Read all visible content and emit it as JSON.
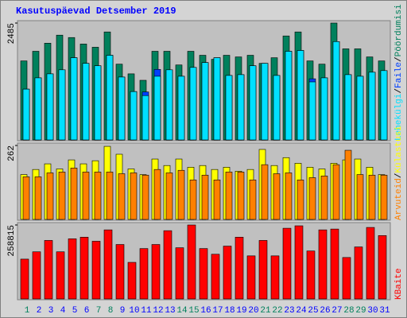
{
  "chart_data": [
    {
      "type": "bar",
      "title": "Kasutuspäevad Detsember 2019",
      "ylim": [
        0,
        2485
      ],
      "yticks": [
        2485
      ],
      "separator": "/",
      "series": [
        {
          "name": "Pöördumisi",
          "color": "#00805c",
          "values": [
            1680,
            1885,
            2057,
            2228,
            2177,
            2039,
            1971,
            2296,
            1611,
            1405,
            1268,
            1885,
            1885,
            1594,
            1885,
            1800,
            1714,
            1800,
            1765,
            1800,
            1628,
            1748,
            2211,
            2296,
            1680,
            1611,
            2485,
            1937,
            1937,
            1765,
            1680
          ]
        },
        {
          "name": "Faile",
          "color": "#0040ff",
          "values": [
            1080,
            1320,
            1405,
            1491,
            1748,
            1628,
            1577,
            1800,
            1337,
            1028,
            1020,
            1500,
            1491,
            1354,
            1542,
            1645,
            1748,
            1371,
            1388,
            1577,
            1628,
            1371,
            1885,
            1902,
            1300,
            1320,
            2091,
            1388,
            1354,
            1440,
            1474
          ]
        },
        {
          "name": "Lehekülgi",
          "color": "#00e0ff",
          "values": [
            1080,
            1320,
            1405,
            1491,
            1748,
            1628,
            1577,
            1800,
            1337,
            1028,
            943,
            1354,
            1491,
            1354,
            1542,
            1645,
            1748,
            1371,
            1388,
            1577,
            1628,
            1371,
            1885,
            1902,
            1234,
            1320,
            2091,
            1388,
            1354,
            1440,
            1474
          ]
        }
      ]
    },
    {
      "type": "bar",
      "ylim": [
        0,
        262
      ],
      "yticks": [
        262
      ],
      "separator": "/",
      "series": [
        {
          "name": "Külastusi",
          "color": "#ffff00",
          "values": [
            159,
            177,
            197,
            179,
            211,
            197,
            208,
            259,
            231,
            179,
            159,
            214,
            191,
            214,
            185,
            191,
            177,
            185,
            171,
            177,
            248,
            191,
            219,
            199,
            185,
            179,
            199,
            211,
            214,
            185,
            159
          ]
        },
        {
          "name": "Arvuteid",
          "color": "#ff8000",
          "values": [
            151,
            151,
            165,
            168,
            182,
            168,
            168,
            168,
            162,
            165,
            157,
            177,
            165,
            174,
            140,
            157,
            140,
            168,
            168,
            140,
            194,
            162,
            165,
            140,
            148,
            154,
            194,
            245,
            159,
            157,
            157
          ]
        }
      ]
    },
    {
      "type": "bar",
      "ylim": [
        0,
        258815
      ],
      "yticks": [
        258815
      ],
      "separator": "/",
      "categories": [
        "1",
        "2",
        "3",
        "4",
        "5",
        "6",
        "7",
        "8",
        "9",
        "10",
        "11",
        "12",
        "13",
        "14",
        "15",
        "16",
        "17",
        "18",
        "19",
        "20",
        "21",
        "22",
        "23",
        "24",
        "25",
        "26",
        "27",
        "28",
        "29",
        "30",
        "31"
      ],
      "category_colors": [
        "#00805c",
        "#0000ff",
        "#0000ff",
        "#0000ff",
        "#0000ff",
        "#0000ff",
        "#00805c",
        "#00805c",
        "#0000ff",
        "#0000ff",
        "#0000ff",
        "#0000ff",
        "#0000ff",
        "#00805c",
        "#00805c",
        "#0000ff",
        "#0000ff",
        "#0000ff",
        "#0000ff",
        "#0000ff",
        "#00805c",
        "#00805c",
        "#0000ff",
        "#0000ff",
        "#0000ff",
        "#0000ff",
        "#0000ff",
        "#00805c",
        "#00805c",
        "#0000ff",
        "#0000ff"
      ],
      "series": [
        {
          "name": "KBaite",
          "color": "#ff0000",
          "values": [
            139362,
            164959,
            204777,
            164959,
            210465,
            216154,
            201933,
            241750,
            190556,
            127986,
            176337,
            190556,
            238906,
            179181,
            258815,
            176337,
            156427,
            184868,
            216154,
            150739,
            204777,
            150739,
            247439,
            255971,
            167803,
            241750,
            244594,
            145052,
            182025,
            250283,
            221840
          ]
        }
      ]
    }
  ]
}
